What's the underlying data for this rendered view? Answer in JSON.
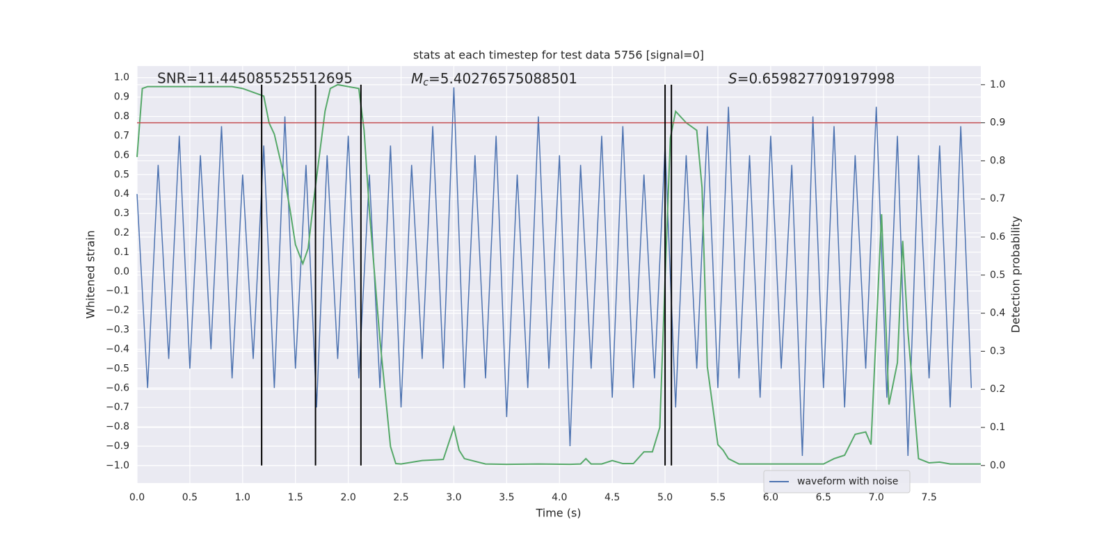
{
  "chart_data": {
    "type": "line",
    "title": "stats at each timestep for test data 5756 [signal=0]",
    "xlabel": "Time (s)",
    "ylabel": "Whitened strain",
    "y2label": "Detection probability",
    "xlim": [
      0,
      7.99
    ],
    "ylim": [
      -1.09,
      1.06
    ],
    "y2lim": [
      -0.046,
      1.049
    ],
    "grid": true,
    "legend": "lower right",
    "xticks": [
      {
        "value": 0,
        "label": "0.0"
      },
      {
        "value": 0.5,
        "label": "0.5"
      },
      {
        "value": 1,
        "label": "1.0"
      },
      {
        "value": 1.5,
        "label": "1.5"
      },
      {
        "value": 2,
        "label": "2.0"
      },
      {
        "value": 2.5,
        "label": "2.5"
      },
      {
        "value": 3,
        "label": "3.0"
      },
      {
        "value": 3.5,
        "label": "3.5"
      },
      {
        "value": 4,
        "label": "4.0"
      },
      {
        "value": 4.5,
        "label": "4.5"
      },
      {
        "value": 5,
        "label": "5.0"
      },
      {
        "value": 5.5,
        "label": "5.5"
      },
      {
        "value": 6,
        "label": "6.0"
      },
      {
        "value": 6.5,
        "label": "6.5"
      },
      {
        "value": 7,
        "label": "7.0"
      },
      {
        "value": 7.5,
        "label": "7.5"
      }
    ],
    "yticks": [
      {
        "value": -1,
        "label": "−1.0"
      },
      {
        "value": -0.9,
        "label": "−0.9"
      },
      {
        "value": -0.8,
        "label": "−0.8"
      },
      {
        "value": -0.7,
        "label": "−0.7"
      },
      {
        "value": -0.6,
        "label": "−0.6"
      },
      {
        "value": -0.5,
        "label": "−0.5"
      },
      {
        "value": -0.4,
        "label": "−0.4"
      },
      {
        "value": -0.3,
        "label": "−0.3"
      },
      {
        "value": -0.2,
        "label": "−0.2"
      },
      {
        "value": -0.1,
        "label": "−0.1"
      },
      {
        "value": 0,
        "label": "0.0"
      },
      {
        "value": 0.1,
        "label": "0.1"
      },
      {
        "value": 0.2,
        "label": "0.2"
      },
      {
        "value": 0.3,
        "label": "0.3"
      },
      {
        "value": 0.4,
        "label": "0.4"
      },
      {
        "value": 0.5,
        "label": "0.5"
      },
      {
        "value": 0.6,
        "label": "0.6"
      },
      {
        "value": 0.7,
        "label": "0.7"
      },
      {
        "value": 0.8,
        "label": "0.8"
      },
      {
        "value": 0.9,
        "label": "0.9"
      },
      {
        "value": 1,
        "label": "1.0"
      }
    ],
    "y2ticks": [
      {
        "value": 0,
        "label": "0.0"
      },
      {
        "value": 0.1,
        "label": "0.1"
      },
      {
        "value": 0.2,
        "label": "0.2"
      },
      {
        "value": 0.3,
        "label": "0.3"
      },
      {
        "value": 0.4,
        "label": "0.4"
      },
      {
        "value": 0.5,
        "label": "0.5"
      },
      {
        "value": 0.6,
        "label": "0.6"
      },
      {
        "value": 0.7,
        "label": "0.7"
      },
      {
        "value": 0.8,
        "label": "0.8"
      },
      {
        "value": 0.9,
        "label": "0.9"
      },
      {
        "value": 1,
        "label": "1.0"
      }
    ],
    "series": [
      {
        "name": "waveform with noise",
        "color": "#4c72b0",
        "x": [
          0.0,
          0.1,
          0.2,
          0.3,
          0.4,
          0.5,
          0.6,
          0.7,
          0.8,
          0.9,
          1.0,
          1.1,
          1.2,
          1.3,
          1.4,
          1.5,
          1.6,
          1.7,
          1.8,
          1.9,
          2.0,
          2.1,
          2.2,
          2.3,
          2.4,
          2.5,
          2.6,
          2.7,
          2.8,
          2.9,
          3.0,
          3.1,
          3.2,
          3.3,
          3.4,
          3.5,
          3.6,
          3.7,
          3.8,
          3.9,
          4.0,
          4.1,
          4.2,
          4.3,
          4.4,
          4.5,
          4.6,
          4.7,
          4.8,
          4.9,
          5.0,
          5.1,
          5.2,
          5.3,
          5.4,
          5.5,
          5.6,
          5.7,
          5.8,
          5.9,
          6.0,
          6.1,
          6.2,
          6.3,
          6.4,
          6.5,
          6.6,
          6.7,
          6.8,
          6.9,
          7.0,
          7.1,
          7.2,
          7.3,
          7.4,
          7.5,
          7.6,
          7.7,
          7.8,
          7.9
        ],
        "values": [
          0.4,
          -0.6,
          0.55,
          -0.45,
          0.7,
          -0.5,
          0.6,
          -0.4,
          0.75,
          -0.55,
          0.5,
          -0.45,
          0.65,
          -0.6,
          0.8,
          -0.5,
          0.55,
          -0.7,
          0.6,
          -0.45,
          0.7,
          -0.55,
          0.5,
          -0.6,
          0.65,
          -0.7,
          0.55,
          -0.45,
          0.75,
          -0.5,
          0.95,
          -0.6,
          0.6,
          -0.55,
          0.7,
          -0.75,
          0.5,
          -0.6,
          0.8,
          -0.5,
          0.6,
          -0.9,
          0.55,
          -0.5,
          0.7,
          -0.65,
          0.75,
          -0.6,
          0.5,
          -0.55,
          0.65,
          -0.7,
          0.6,
          -0.5,
          0.75,
          -0.6,
          0.85,
          -0.55,
          0.6,
          -0.65,
          0.7,
          -0.5,
          0.55,
          -0.95,
          0.8,
          -0.6,
          0.75,
          -0.7,
          0.6,
          -0.5,
          0.85,
          -0.65,
          0.7,
          -0.95,
          0.6,
          -0.55,
          0.65,
          -0.7,
          0.75,
          -0.6
        ]
      },
      {
        "color": "#55a868",
        "axis": "y2",
        "x": [
          0,
          0.05,
          0.1,
          0.9,
          1.0,
          1.1,
          1.2,
          1.25,
          1.3,
          1.4,
          1.45,
          1.5,
          1.57,
          1.62,
          1.67,
          1.72,
          1.78,
          1.83,
          1.9,
          2.0,
          2.1,
          2.15,
          2.2,
          2.3,
          2.4,
          2.45,
          2.5,
          2.7,
          2.9,
          3.0,
          3.05,
          3.1,
          3.3,
          3.5,
          3.8,
          4.1,
          4.2,
          4.25,
          4.3,
          4.4,
          4.5,
          4.6,
          4.7,
          4.8,
          4.88,
          4.95,
          5.0,
          5.05,
          5.1,
          5.2,
          5.3,
          5.35,
          5.4,
          5.5,
          5.55,
          5.6,
          5.7,
          6.0,
          6.5,
          6.6,
          6.7,
          6.8,
          6.9,
          6.95,
          7.05,
          7.12,
          7.2,
          7.25,
          7.3,
          7.4,
          7.5,
          7.6,
          7.7,
          7.99
        ],
        "values": [
          0.81,
          0.99,
          0.995,
          0.995,
          0.99,
          0.98,
          0.97,
          0.9,
          0.87,
          0.75,
          0.67,
          0.58,
          0.53,
          0.57,
          0.69,
          0.8,
          0.93,
          0.99,
          1.0,
          0.995,
          0.99,
          0.88,
          0.67,
          0.33,
          0.05,
          0.005,
          0.004,
          0.013,
          0.016,
          0.1,
          0.04,
          0.018,
          0.004,
          0.003,
          0.004,
          0.003,
          0.004,
          0.018,
          0.004,
          0.004,
          0.013,
          0.005,
          0.005,
          0.036,
          0.036,
          0.1,
          0.49,
          0.86,
          0.93,
          0.9,
          0.88,
          0.73,
          0.26,
          0.055,
          0.04,
          0.018,
          0.004,
          0.004,
          0.004,
          0.018,
          0.027,
          0.082,
          0.088,
          0.055,
          0.66,
          0.16,
          0.27,
          0.59,
          0.35,
          0.018,
          0.007,
          0.009,
          0.004,
          0.004
        ]
      }
    ],
    "threshold": {
      "value": 0.9,
      "color": "#c44e52",
      "axis": "y2"
    },
    "vlines": {
      "x": [
        1.18,
        1.69,
        2.12,
        5.0,
        5.06
      ],
      "ymin": 0,
      "ymax": 1,
      "axis": "y2",
      "color": "#000000"
    },
    "annotations": [
      "SNR=11.445085525512695",
      [
        "M",
        "c",
        "=5.40276575088501"
      ],
      [
        "S",
        "=0.659827709197998"
      ]
    ]
  }
}
